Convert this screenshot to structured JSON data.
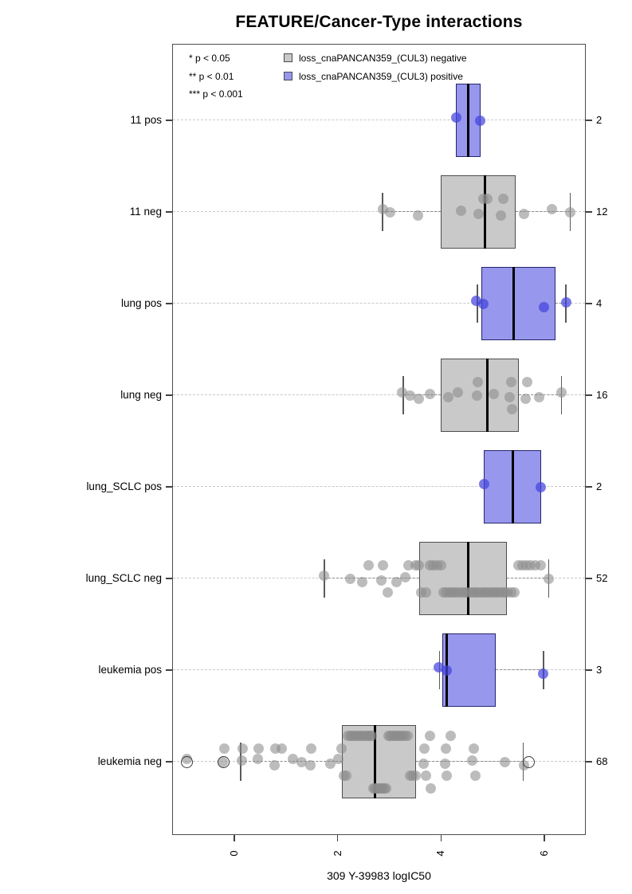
{
  "title": "FEATURE/Cancer-Type interactions",
  "legend": {
    "significance": [
      "* p < 0.05",
      "** p < 0.01",
      "*** p < 0.001"
    ],
    "items": [
      {
        "label": "loss_cnaPANCAN359_(CUL3) negative",
        "color": "#c9c9c9"
      },
      {
        "label": "loss_cnaPANCAN359_(CUL3) positive",
        "color": "#9797ee"
      }
    ]
  },
  "x_axis": {
    "label": "309 Y-39983 logIC50",
    "ticks": [
      "0",
      "2",
      "4",
      "6"
    ]
  },
  "colors": {
    "axis": "#404040",
    "gridline": "#c9c9c9",
    "whisker": "#8a8a8a",
    "whisker_cap": "#5a5a5a",
    "median": "#000000",
    "negative_fill": "#c9c9c9",
    "negative_border": "#4d4d4d",
    "negative_point": "#8c8c8c",
    "positive_fill": "#9797ee",
    "positive_border": "#26266b",
    "positive_point": "#4444dd",
    "outlier_stroke": "#3a3a3a"
  },
  "chart_data": {
    "type": "boxplot",
    "orientation": "horizontal",
    "title": "FEATURE/Cancer-Type interactions",
    "xlabel": "309 Y-39983 logIC50",
    "x_ticks": [
      0,
      2,
      4,
      6
    ],
    "xlim": [
      -1.2,
      6.8
    ],
    "grid": "dashed horizontal line per category row",
    "legend_position": "top-left inside plot",
    "rows": [
      {
        "label": "11 pos",
        "group": "positive",
        "n": 2,
        "whisker_low": 4.28,
        "q1": 4.28,
        "median": 4.53,
        "q3": 4.77,
        "whisker_high": 4.77,
        "points": [
          4.3,
          4.75
        ],
        "outliers": []
      },
      {
        "label": "11 neg",
        "group": "negative",
        "n": 12,
        "whisker_low": 2.87,
        "q1": 3.99,
        "median": 4.85,
        "q3": 5.44,
        "whisker_high": 6.5,
        "points": [
          2.87,
          3.02,
          3.56,
          4.38,
          4.73,
          4.82,
          4.9,
          5.15,
          5.2,
          5.61,
          6.15,
          6.5
        ],
        "outliers": []
      },
      {
        "label": "lung pos",
        "group": "positive",
        "n": 4,
        "whisker_low": 4.7,
        "q1": 4.78,
        "median": 5.41,
        "q3": 6.21,
        "whisker_high": 6.41,
        "points": [
          4.68,
          4.82,
          5.99,
          6.42
        ],
        "outliers": []
      },
      {
        "label": "lung neg",
        "group": "negative",
        "n": 16,
        "whisker_low": 3.27,
        "q1": 3.99,
        "median": 4.9,
        "q3": 5.5,
        "whisker_high": 6.33,
        "points": [
          3.24,
          3.4,
          3.57,
          3.78,
          4.14,
          4.33,
          4.69,
          4.71,
          5.02,
          5.33,
          5.35,
          5.37,
          5.64,
          5.66,
          5.9,
          6.33
        ],
        "outliers": []
      },
      {
        "label": "lung_SCLC pos",
        "group": "positive",
        "n": 2,
        "whisker_low": 4.82,
        "q1": 4.82,
        "median": 5.38,
        "q3": 5.94,
        "whisker_high": 5.94,
        "points": [
          4.84,
          5.92
        ],
        "outliers": []
      },
      {
        "label": "lung_SCLC neg",
        "group": "negative",
        "n": 52,
        "whisker_low": 1.74,
        "q1": 3.57,
        "median": 4.53,
        "q3": 5.27,
        "whisker_high": 6.08,
        "points": [
          1.74,
          2.25,
          2.48,
          2.6,
          2.84,
          2.88,
          2.97,
          3.13,
          3.3,
          3.37,
          3.5,
          3.57,
          3.62,
          3.7,
          3.78,
          3.85,
          3.92,
          4.0,
          4.05,
          4.1,
          4.15,
          4.2,
          4.25,
          4.3,
          4.36,
          4.42,
          4.47,
          4.53,
          4.58,
          4.63,
          4.68,
          4.73,
          4.78,
          4.83,
          4.88,
          4.93,
          4.98,
          5.03,
          5.08,
          5.13,
          5.18,
          5.23,
          5.28,
          5.35,
          5.42,
          5.5,
          5.58,
          5.65,
          5.73,
          5.82,
          5.92,
          6.08
        ],
        "outliers": []
      },
      {
        "label": "leukemia pos",
        "group": "positive",
        "n": 3,
        "whisker_low": 3.97,
        "q1": 4.02,
        "median": 4.11,
        "q3": 5.06,
        "whisker_high": 5.98,
        "points": [
          3.96,
          4.11,
          5.98
        ],
        "outliers": []
      },
      {
        "label": "leukemia neg",
        "group": "negative",
        "n": 68,
        "whisker_low": 0.12,
        "q1": 2.08,
        "median": 2.72,
        "q3": 3.52,
        "whisker_high": 5.59,
        "points": [
          -0.91,
          -0.23,
          -0.19,
          0.14,
          0.16,
          0.45,
          0.47,
          0.78,
          0.8,
          0.92,
          1.14,
          1.31,
          1.47,
          1.49,
          1.85,
          2.01,
          2.08,
          2.12,
          2.16,
          2.2,
          2.24,
          2.28,
          2.32,
          2.36,
          2.4,
          2.44,
          2.48,
          2.52,
          2.56,
          2.6,
          2.63,
          2.66,
          2.69,
          2.72,
          2.75,
          2.78,
          2.81,
          2.84,
          2.87,
          2.9,
          2.94,
          2.98,
          3.02,
          3.06,
          3.1,
          3.14,
          3.18,
          3.22,
          3.26,
          3.3,
          3.35,
          3.4,
          3.45,
          3.5,
          3.66,
          3.68,
          3.7,
          3.78,
          3.8,
          4.07,
          4.09,
          4.11,
          4.19,
          4.6,
          4.63,
          4.66,
          5.23,
          5.61
        ],
        "outliers": [
          -0.91,
          -0.21,
          5.69
        ]
      }
    ],
    "right_axis_counts": [
      2,
      12,
      4,
      16,
      2,
      52,
      3,
      68
    ]
  }
}
